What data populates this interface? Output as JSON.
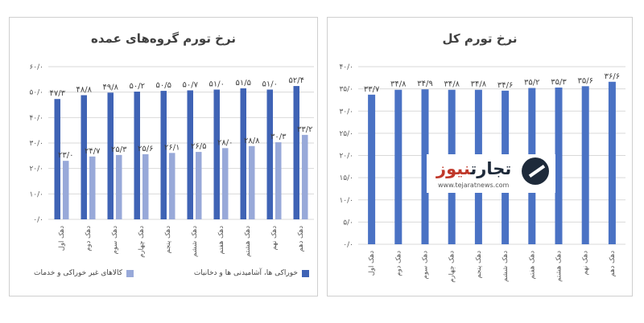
{
  "colors": {
    "food": "#3f63b5",
    "nonfood": "#98a9d9",
    "total": "#4a72c4",
    "grid": "#d9d9d9",
    "axis_text": "#595959"
  },
  "charts": {
    "left": {
      "chart_data": {
        "type": "bar",
        "title": "نرخ تورم گروه‌های عمده",
        "categories": [
          "دهک اول",
          "دهک دوم",
          "دهک سوم",
          "دهک چهارم",
          "دهک پنجم",
          "دهک ششم",
          "دهک هفتم",
          "دهک هشتم",
          "دهک نهم",
          "دهک دهم"
        ],
        "series": [
          {
            "name": "خوراکی ها، آشامیدنی ها و دخانیات",
            "values": [
              47.3,
              48.8,
              49.8,
              50.2,
              50.5,
              50.7,
              51.0,
              51.5,
              51.0,
              52.4
            ],
            "labels": [
              "۴۷/۳",
              "۴۸/۸",
              "۴۹/۸",
              "۵۰/۲",
              "۵۰/۵",
              "۵۰/۷",
              "۵۱/۰",
              "۵۱/۵",
              "۵۱/۰",
              "۵۲/۴"
            ]
          },
          {
            "name": "کالاهای غیر خوراکی و خدمات",
            "values": [
              23.0,
              24.7,
              25.3,
              25.6,
              26.1,
              26.5,
              28.0,
              28.8,
              30.3,
              33.2
            ],
            "labels": [
              "۲۳/۰",
              "۲۴/۷",
              "۲۵/۳",
              "۲۵/۶",
              "۲۶/۱",
              "۲۶/۵",
              "۲۸/۰",
              "۲۸/۸",
              "۳۰/۳",
              "۳۳/۲"
            ]
          }
        ],
        "ylim": [
          0,
          60
        ],
        "yticks": [
          0,
          10,
          20,
          30,
          40,
          50,
          60
        ],
        "ytick_labels": [
          "۰/۰",
          "۱۰/۰",
          "۲۰/۰",
          "۳۰/۰",
          "۴۰/۰",
          "۵۰/۰",
          "۶۰/۰"
        ],
        "grid": true,
        "legend": "bottom"
      }
    },
    "right": {
      "chart_data": {
        "type": "bar",
        "title": "نرخ تورم کل",
        "categories": [
          "دهک اول",
          "دهک دوم",
          "دهک سوم",
          "دهک چهارم",
          "دهک پنجم",
          "دهک ششم",
          "دهک هفتم",
          "دهک هشتم",
          "دهک نهم",
          "دهک دهم"
        ],
        "series": [
          {
            "values": [
              33.7,
              34.8,
              34.9,
              34.8,
              34.8,
              34.6,
              35.2,
              35.3,
              35.6,
              36.6
            ],
            "labels": [
              "۳۳/۷",
              "۳۴/۸",
              "۳۴/۹",
              "۳۴/۸",
              "۳۴/۸",
              "۳۴/۶",
              "۳۵/۲",
              "۳۵/۳",
              "۳۵/۶",
              "۳۶/۶"
            ]
          }
        ],
        "ylim": [
          0,
          40
        ],
        "yticks": [
          0,
          5,
          10,
          15,
          20,
          25,
          30,
          35,
          40
        ],
        "ytick_labels": [
          "۰/۰",
          "۵/۰",
          "۱۰/۰",
          "۱۵/۰",
          "۲۰/۰",
          "۲۵/۰",
          "۳۰/۰",
          "۳۵/۰",
          "۴۰/۰"
        ],
        "grid": true,
        "legend": "none"
      }
    }
  },
  "watermark": {
    "brand_part1": "تجارت",
    "brand_part2": "نیوز",
    "url": "www.tejaratnews.com"
  }
}
